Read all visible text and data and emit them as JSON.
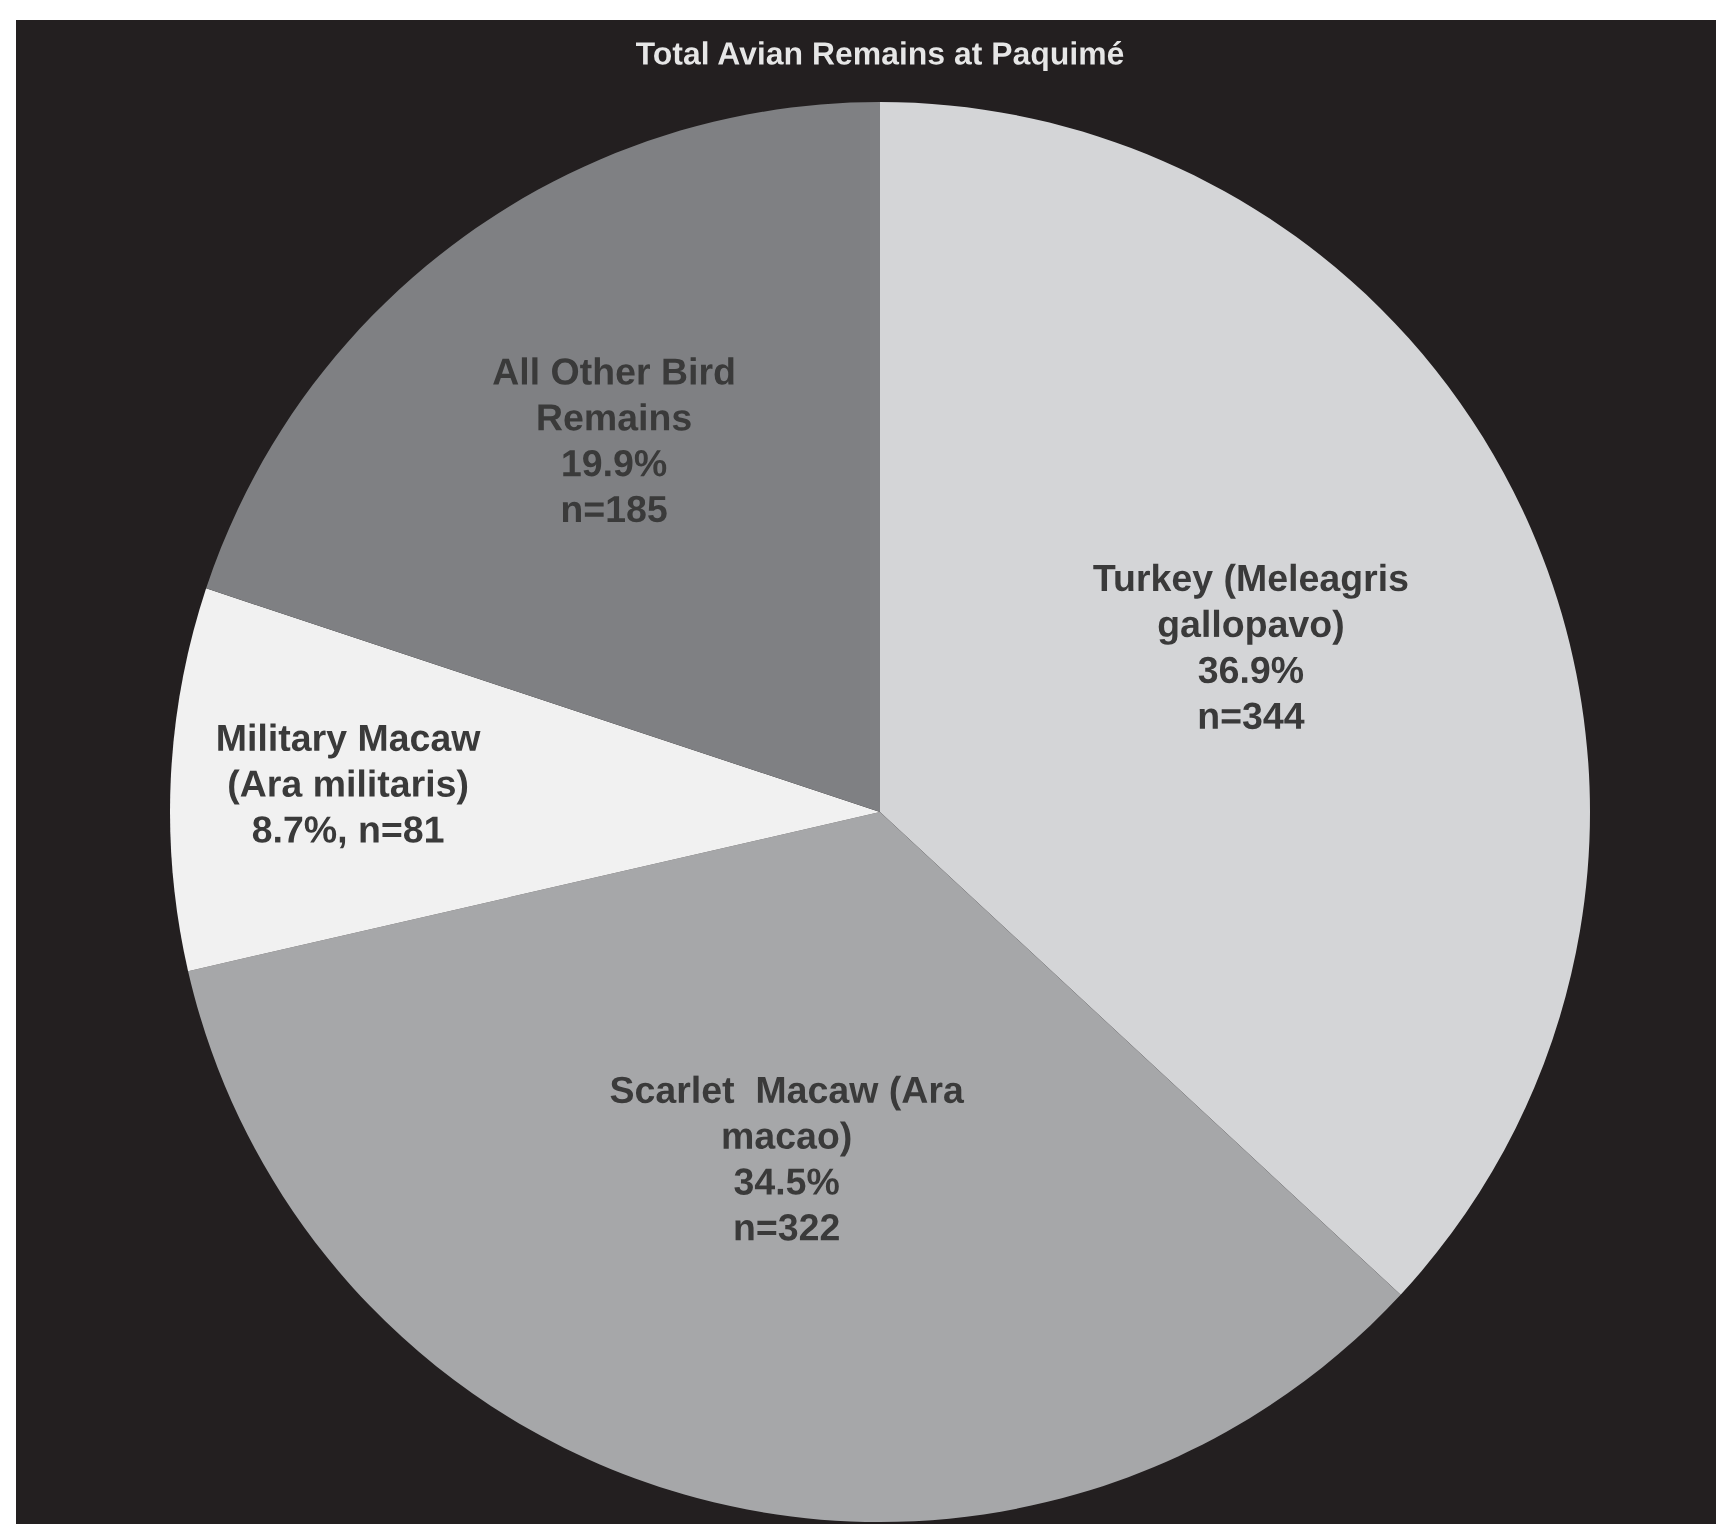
{
  "chart_data": {
    "type": "pie",
    "title": "Total Avian Remains at Paquimé",
    "categories": [
      "Turkey (Meleagris\ngallopavo)",
      "Scarlet  Macaw (Ara\nmacao)",
      "Military Macaw\n(Ara militaris)",
      "All Other Bird\nRemains"
    ],
    "values": [
      36.9,
      34.5,
      8.7,
      19.9
    ],
    "value_labels": [
      "36.9%\nn=344",
      "34.5%\nn=322",
      "8.7%, n=81",
      "19.9%\nn=185"
    ],
    "colors": [
      "#d4d5d7",
      "#a6a7a9",
      "#f1f1f1",
      "#7f8083"
    ]
  }
}
